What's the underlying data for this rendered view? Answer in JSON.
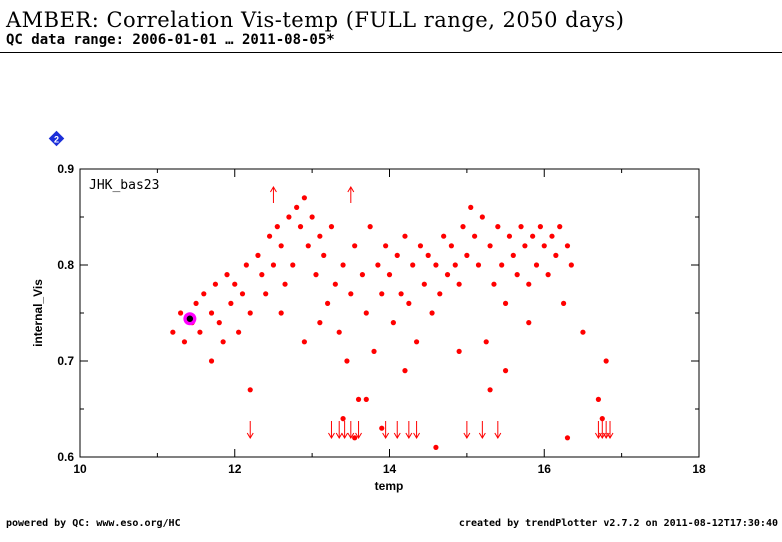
{
  "header": {
    "title": "AMBER: Correlation Vis-temp (FULL range, 2050 days)",
    "subtitle": "QC data range: 2006-01-01 … 2011-08-05*"
  },
  "badge": {
    "label": "2",
    "icon": "diamond-badge-icon",
    "color": "#1c2fd9"
  },
  "footer": {
    "left": "powered by QC: www.eso.org/HC",
    "right": "created by trendPlotter v2.7.2 on 2011-08-12T17:30:40"
  },
  "chart_data": {
    "type": "scatter",
    "panel_label": "JHK_bas23",
    "xlabel": "temp",
    "ylabel": "internal_Vis",
    "xlim": [
      10,
      18
    ],
    "ylim": [
      0.6,
      0.9
    ],
    "xticks": [
      "10",
      "12",
      "14",
      "16",
      "18"
    ],
    "yticks": [
      "0.6",
      "0.7",
      "0.8",
      "0.9"
    ],
    "point_color": "#ff0000",
    "highlight_color": "#ff00ff",
    "grid": false,
    "series": [
      {
        "values": [
          [
            11.2,
            0.73
          ],
          [
            11.3,
            0.75
          ],
          [
            11.35,
            0.72
          ],
          [
            11.45,
            0.74
          ],
          [
            11.5,
            0.76
          ],
          [
            11.55,
            0.73
          ],
          [
            11.6,
            0.77
          ],
          [
            11.7,
            0.75
          ],
          [
            11.75,
            0.78
          ],
          [
            11.8,
            0.74
          ],
          [
            11.85,
            0.72
          ],
          [
            11.9,
            0.79
          ],
          [
            11.95,
            0.76
          ],
          [
            12.0,
            0.78
          ],
          [
            12.05,
            0.73
          ],
          [
            12.1,
            0.77
          ],
          [
            12.15,
            0.8
          ],
          [
            12.2,
            0.75
          ],
          [
            12.3,
            0.81
          ],
          [
            12.35,
            0.79
          ],
          [
            12.4,
            0.77
          ],
          [
            12.45,
            0.83
          ],
          [
            12.5,
            0.8
          ],
          [
            12.55,
            0.84
          ],
          [
            12.6,
            0.82
          ],
          [
            12.65,
            0.78
          ],
          [
            12.7,
            0.85
          ],
          [
            12.75,
            0.8
          ],
          [
            12.8,
            0.86
          ],
          [
            12.85,
            0.84
          ],
          [
            12.9,
            0.87
          ],
          [
            12.95,
            0.82
          ],
          [
            13.0,
            0.85
          ],
          [
            13.05,
            0.79
          ],
          [
            13.1,
            0.83
          ],
          [
            13.15,
            0.81
          ],
          [
            13.2,
            0.76
          ],
          [
            13.25,
            0.84
          ],
          [
            13.3,
            0.78
          ],
          [
            13.35,
            0.73
          ],
          [
            13.4,
            0.8
          ],
          [
            13.45,
            0.7
          ],
          [
            13.5,
            0.77
          ],
          [
            13.55,
            0.82
          ],
          [
            13.6,
            0.66
          ],
          [
            13.65,
            0.79
          ],
          [
            13.7,
            0.75
          ],
          [
            13.75,
            0.84
          ],
          [
            13.8,
            0.71
          ],
          [
            13.85,
            0.8
          ],
          [
            13.9,
            0.77
          ],
          [
            13.95,
            0.82
          ],
          [
            14.0,
            0.79
          ],
          [
            14.05,
            0.74
          ],
          [
            14.1,
            0.81
          ],
          [
            14.15,
            0.77
          ],
          [
            14.2,
            0.83
          ],
          [
            14.25,
            0.76
          ],
          [
            14.3,
            0.8
          ],
          [
            14.35,
            0.72
          ],
          [
            14.4,
            0.82
          ],
          [
            14.45,
            0.78
          ],
          [
            14.5,
            0.81
          ],
          [
            14.55,
            0.75
          ],
          [
            14.6,
            0.8
          ],
          [
            14.65,
            0.77
          ],
          [
            14.7,
            0.83
          ],
          [
            14.75,
            0.79
          ],
          [
            14.8,
            0.82
          ],
          [
            14.85,
            0.8
          ],
          [
            14.9,
            0.78
          ],
          [
            14.95,
            0.84
          ],
          [
            15.0,
            0.81
          ],
          [
            15.05,
            0.86
          ],
          [
            15.1,
            0.83
          ],
          [
            15.15,
            0.8
          ],
          [
            15.2,
            0.85
          ],
          [
            15.25,
            0.72
          ],
          [
            15.3,
            0.82
          ],
          [
            15.35,
            0.78
          ],
          [
            15.4,
            0.84
          ],
          [
            15.45,
            0.8
          ],
          [
            15.5,
            0.76
          ],
          [
            15.55,
            0.83
          ],
          [
            15.6,
            0.81
          ],
          [
            15.65,
            0.79
          ],
          [
            15.7,
            0.84
          ],
          [
            15.75,
            0.82
          ],
          [
            15.8,
            0.78
          ],
          [
            15.85,
            0.83
          ],
          [
            15.9,
            0.8
          ],
          [
            15.95,
            0.84
          ],
          [
            16.0,
            0.82
          ],
          [
            16.05,
            0.79
          ],
          [
            16.1,
            0.83
          ],
          [
            16.15,
            0.81
          ],
          [
            16.2,
            0.84
          ],
          [
            16.25,
            0.76
          ],
          [
            16.3,
            0.82
          ],
          [
            16.35,
            0.8
          ],
          [
            12.2,
            0.67
          ],
          [
            12.6,
            0.75
          ],
          [
            13.1,
            0.74
          ],
          [
            13.4,
            0.64
          ],
          [
            13.55,
            0.62
          ],
          [
            13.9,
            0.63
          ],
          [
            14.6,
            0.61
          ],
          [
            15.3,
            0.67
          ],
          [
            15.5,
            0.69
          ],
          [
            16.3,
            0.62
          ],
          [
            16.7,
            0.66
          ],
          [
            16.8,
            0.7
          ],
          [
            16.75,
            0.64
          ],
          [
            16.5,
            0.73
          ],
          [
            15.8,
            0.74
          ],
          [
            14.9,
            0.71
          ],
          [
            14.2,
            0.69
          ],
          [
            13.7,
            0.66
          ],
          [
            12.9,
            0.72
          ],
          [
            11.7,
            0.7
          ]
        ]
      }
    ],
    "highlight_points": [
      [
        11.42,
        0.744
      ]
    ],
    "arrows_up": [
      12.5,
      13.5
    ],
    "arrows_down": [
      12.2,
      13.25,
      13.35,
      13.42,
      13.5,
      13.6,
      13.95,
      14.1,
      14.25,
      14.35,
      15.0,
      15.2,
      15.4,
      16.7,
      16.75,
      16.8,
      16.85
    ]
  }
}
